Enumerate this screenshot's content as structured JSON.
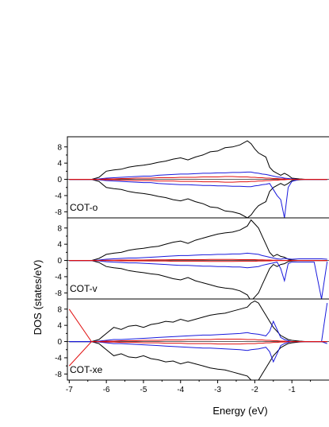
{
  "chart_data": {
    "type": "line",
    "ylabel": "DOS (states/eV)",
    "xlabel": "Energy (eV)",
    "xlim": [
      -7.05,
      -0.0
    ],
    "x_ticks": [
      -7,
      -6,
      -5,
      -4,
      -3,
      -2,
      -1
    ],
    "x_tick_labels": [
      "-7",
      "-6",
      "-5",
      "-4",
      "-3",
      "-2",
      "-1"
    ],
    "ylim": [
      -9.5,
      10.5
    ],
    "y_ticks": [
      -8,
      -4,
      0,
      4,
      8
    ],
    "y_tick_labels": [
      "-8",
      "-4",
      "0",
      "4",
      "8"
    ],
    "y_minor_ticks": [
      -6,
      -2,
      2,
      6
    ],
    "grid": false,
    "colors": {
      "black": "#000000",
      "blue": "#1a1adc",
      "red": "#e01010"
    },
    "panels": [
      {
        "label": "COT-o",
        "x": [
          -7.0,
          -6.4,
          -6.2,
          -6.0,
          -5.8,
          -5.6,
          -5.4,
          -5.2,
          -5.0,
          -4.8,
          -4.6,
          -4.4,
          -4.2,
          -4.0,
          -3.8,
          -3.6,
          -3.4,
          -3.2,
          -3.0,
          -2.8,
          -2.6,
          -2.4,
          -2.2,
          -2.1,
          -2.0,
          -1.9,
          -1.8,
          -1.7,
          -1.6,
          -1.5,
          -1.4,
          -1.3,
          -1.2,
          -1.1,
          -1.0,
          -0.8,
          -0.6,
          -0.4,
          -0.2,
          -0.05
        ],
        "series": [
          {
            "color": "black",
            "values": [
              0,
              0,
              0.5,
              2.0,
              2.3,
              2.5,
              3.0,
              3.3,
              3.5,
              3.8,
              4.2,
              4.5,
              5.0,
              5.3,
              4.8,
              5.5,
              6.0,
              6.8,
              7.0,
              7.8,
              8.0,
              8.5,
              9.5,
              8.8,
              7.5,
              6.5,
              6.0,
              5.5,
              3.0,
              2.0,
              1.5,
              1.0,
              1.5,
              1.0,
              0.3,
              0.1,
              0,
              0,
              0,
              0
            ]
          },
          {
            "color": "black",
            "values": [
              0,
              0,
              -0.5,
              -2.0,
              -2.3,
              -2.5,
              -3.0,
              -3.3,
              -3.5,
              -3.8,
              -4.2,
              -4.5,
              -5.0,
              -5.3,
              -4.8,
              -5.5,
              -6.0,
              -6.8,
              -7.0,
              -7.8,
              -8.0,
              -8.5,
              -9.5,
              -8.8,
              -7.5,
              -6.5,
              -6.0,
              -5.5,
              -3.0,
              -2.0,
              -1.5,
              -1.0,
              -1.5,
              -1.0,
              -0.3,
              -0.1,
              0,
              0,
              0,
              0
            ]
          },
          {
            "color": "blue",
            "values": [
              0,
              0,
              0.1,
              0.3,
              0.4,
              0.5,
              0.6,
              0.7,
              0.8,
              0.8,
              1.0,
              1.1,
              1.2,
              1.3,
              1.3,
              1.4,
              1.5,
              1.5,
              1.6,
              1.6,
              1.7,
              1.7,
              1.8,
              1.8,
              1.6,
              1.5,
              1.3,
              1.2,
              1.0,
              0.8,
              0.6,
              0.5,
              0.3,
              0.2,
              0.1,
              0,
              0,
              0,
              0,
              0
            ]
          },
          {
            "color": "blue",
            "values": [
              0,
              0,
              -0.1,
              -0.3,
              -0.4,
              -0.5,
              -0.6,
              -0.7,
              -0.8,
              -0.8,
              -1.0,
              -1.1,
              -1.2,
              -1.3,
              -1.3,
              -1.4,
              -1.5,
              -1.5,
              -1.6,
              -1.6,
              -1.7,
              -1.7,
              -1.8,
              -1.8,
              -1.6,
              -1.5,
              -1.3,
              -1.2,
              -1.0,
              -2.5,
              -4.0,
              -5.0,
              -9.5,
              -2.0,
              -0.5,
              0,
              0,
              0,
              0,
              0
            ]
          },
          {
            "color": "red",
            "values": [
              0,
              0,
              0,
              0.1,
              0.1,
              0.2,
              0.2,
              0.3,
              0.3,
              0.3,
              0.4,
              0.4,
              0.4,
              0.5,
              0.5,
              0.5,
              0.6,
              0.6,
              0.6,
              0.7,
              0.7,
              0.6,
              0.6,
              0.5,
              0.5,
              0.4,
              0.4,
              0.3,
              0.3,
              0.2,
              0.2,
              0.1,
              0.1,
              0,
              0,
              0,
              0,
              0,
              0,
              0
            ]
          },
          {
            "color": "red",
            "values": [
              0,
              0,
              0,
              -0.1,
              -0.1,
              -0.2,
              -0.2,
              -0.3,
              -0.3,
              -0.3,
              -0.4,
              -0.4,
              -0.4,
              -0.5,
              -0.5,
              -0.5,
              -0.6,
              -0.6,
              -0.6,
              -0.7,
              -0.7,
              -0.6,
              -0.6,
              -0.5,
              -0.5,
              -0.4,
              -0.4,
              -0.3,
              -0.3,
              -0.2,
              -0.2,
              -0.1,
              -0.1,
              0,
              0,
              0,
              0,
              0,
              0,
              0
            ]
          }
        ]
      },
      {
        "label": "COT-v",
        "x": [
          -7.0,
          -6.4,
          -6.2,
          -6.0,
          -5.8,
          -5.6,
          -5.4,
          -5.2,
          -5.0,
          -4.8,
          -4.6,
          -4.4,
          -4.2,
          -4.0,
          -3.8,
          -3.6,
          -3.4,
          -3.2,
          -3.0,
          -2.8,
          -2.6,
          -2.4,
          -2.2,
          -2.1,
          -2.0,
          -1.9,
          -1.8,
          -1.7,
          -1.6,
          -1.5,
          -1.4,
          -1.3,
          -1.2,
          -1.1,
          -1.0,
          -0.8,
          -0.6,
          -0.4,
          -0.2,
          -0.05
        ],
        "series": [
          {
            "color": "black",
            "values": [
              0,
              0,
              0.5,
              1.5,
              1.8,
              2.0,
              2.5,
              2.8,
              3.0,
              3.3,
              3.5,
              4.0,
              4.5,
              4.8,
              4.2,
              5.0,
              5.5,
              6.0,
              6.5,
              6.8,
              7.0,
              7.5,
              8.5,
              10.0,
              9.0,
              8.0,
              6.0,
              4.0,
              2.0,
              1.0,
              1.5,
              1.0,
              0.8,
              0.3,
              0.1,
              0,
              0,
              0,
              0,
              0
            ]
          },
          {
            "color": "black",
            "values": [
              0,
              0,
              -0.5,
              -1.5,
              -1.8,
              -2.0,
              -2.5,
              -2.8,
              -3.0,
              -3.3,
              -3.5,
              -4.0,
              -4.5,
              -4.8,
              -4.2,
              -5.0,
              -5.5,
              -6.0,
              -6.5,
              -6.8,
              -7.0,
              -7.5,
              -8.5,
              -10.0,
              -9.0,
              -8.0,
              -6.0,
              -4.0,
              -2.0,
              -1.0,
              -1.5,
              -1.0,
              -0.8,
              -0.3,
              -0.1,
              0,
              0,
              0,
              0,
              0
            ]
          },
          {
            "color": "blue",
            "values": [
              0,
              0,
              0.1,
              0.3,
              0.4,
              0.5,
              0.6,
              0.6,
              0.7,
              0.8,
              0.9,
              1.0,
              1.1,
              1.2,
              1.2,
              1.3,
              1.4,
              1.4,
              1.5,
              1.5,
              1.6,
              1.6,
              1.8,
              1.7,
              1.6,
              1.5,
              1.2,
              1.0,
              0.8,
              0.6,
              0.4,
              0.3,
              0.5,
              0.4,
              0.3,
              0.4,
              0.4,
              0.4,
              0.4,
              0.3
            ]
          },
          {
            "color": "blue",
            "values": [
              0,
              0,
              -0.1,
              -0.3,
              -0.4,
              -0.5,
              -0.6,
              -0.6,
              -0.7,
              -0.8,
              -0.9,
              -1.0,
              -1.1,
              -1.2,
              -1.2,
              -1.3,
              -1.4,
              -1.4,
              -1.5,
              -1.5,
              -1.6,
              -1.6,
              -1.8,
              -1.7,
              -1.6,
              -1.5,
              -1.2,
              -1.0,
              -0.8,
              -0.6,
              -0.4,
              -2.0,
              -5.0,
              -0.8,
              -0.4,
              -0.4,
              -0.4,
              -0.4,
              -9.5,
              -0.3
            ]
          },
          {
            "color": "red",
            "values": [
              0,
              0,
              0,
              0.05,
              0.05,
              0.1,
              0.1,
              0.1,
              0.1,
              0.15,
              0.15,
              0.15,
              0.2,
              0.2,
              0.2,
              0.2,
              0.2,
              0.25,
              0.25,
              0.25,
              0.25,
              0.2,
              0.2,
              0.2,
              0.2,
              0.15,
              0.15,
              0.1,
              0.1,
              0.05,
              0.05,
              0,
              0,
              0,
              0,
              0,
              0,
              0,
              0,
              0
            ]
          },
          {
            "color": "red",
            "values": [
              0,
              0,
              0,
              -0.05,
              -0.05,
              -0.1,
              -0.1,
              -0.1,
              -0.1,
              -0.15,
              -0.15,
              -0.15,
              -0.2,
              -0.2,
              -0.2,
              -0.2,
              -0.2,
              -0.25,
              -0.25,
              -0.25,
              -0.25,
              -0.2,
              -0.2,
              -0.2,
              -0.2,
              -0.15,
              -0.15,
              -0.1,
              -0.1,
              -0.05,
              -0.05,
              0,
              0,
              0,
              0,
              0,
              0,
              0,
              0,
              0
            ]
          }
        ]
      },
      {
        "label": "COT-xe",
        "x": [
          -7.0,
          -6.4,
          -6.2,
          -6.0,
          -5.8,
          -5.6,
          -5.4,
          -5.2,
          -5.0,
          -4.8,
          -4.6,
          -4.4,
          -4.2,
          -4.0,
          -3.8,
          -3.6,
          -3.4,
          -3.2,
          -3.0,
          -2.8,
          -2.6,
          -2.4,
          -2.2,
          -2.1,
          -2.0,
          -1.9,
          -1.8,
          -1.7,
          -1.6,
          -1.5,
          -1.4,
          -1.3,
          -1.2,
          -1.1,
          -1.0,
          -0.8,
          -0.6,
          -0.4,
          -0.2,
          -0.05
        ],
        "series": [
          {
            "color": "black",
            "values": [
              0,
              0,
              0.5,
              2.0,
              3.5,
              3.0,
              3.8,
              4.0,
              3.5,
              4.2,
              4.5,
              5.0,
              4.8,
              5.5,
              5.0,
              5.5,
              6.0,
              6.5,
              6.8,
              7.0,
              7.5,
              8.0,
              8.5,
              9.5,
              10.0,
              9.5,
              8.0,
              6.5,
              5.0,
              3.5,
              2.5,
              1.5,
              1.0,
              0.5,
              0.3,
              0.1,
              0,
              0,
              0,
              0
            ]
          },
          {
            "color": "black",
            "values": [
              0,
              0,
              -0.5,
              -2.0,
              -3.5,
              -3.0,
              -3.8,
              -4.0,
              -3.5,
              -4.2,
              -4.5,
              -5.0,
              -4.8,
              -5.5,
              -5.0,
              -5.5,
              -6.0,
              -6.5,
              -6.8,
              -7.0,
              -7.5,
              -8.0,
              -8.5,
              -9.5,
              -10.0,
              -9.5,
              -8.0,
              -6.5,
              -5.0,
              -3.5,
              -2.5,
              -1.5,
              -1.0,
              -0.5,
              -0.3,
              -0.1,
              0,
              0,
              0,
              0
            ]
          },
          {
            "color": "blue",
            "values": [
              0,
              0,
              0.1,
              0.3,
              0.5,
              0.5,
              0.6,
              0.7,
              0.8,
              0.9,
              1.0,
              1.1,
              1.2,
              1.3,
              1.4,
              1.5,
              1.6,
              1.6,
              1.7,
              1.8,
              1.9,
              2.0,
              2.2,
              2.0,
              1.9,
              1.8,
              1.6,
              1.4,
              2.5,
              5.0,
              3.0,
              1.0,
              0.5,
              0.2,
              0,
              0,
              0,
              0,
              0,
              9.5
            ]
          },
          {
            "color": "blue",
            "values": [
              0,
              0,
              -0.1,
              -0.3,
              -0.5,
              -0.5,
              -0.6,
              -0.7,
              -0.8,
              -0.9,
              -1.0,
              -1.1,
              -1.2,
              -1.3,
              -1.4,
              -1.5,
              -1.6,
              -1.6,
              -1.7,
              -1.8,
              -1.9,
              -2.0,
              -2.2,
              -2.0,
              -1.9,
              -1.8,
              -1.6,
              -1.4,
              -2.5,
              -5.0,
              -3.0,
              -1.0,
              -0.5,
              -0.2,
              0,
              0,
              0,
              0,
              0,
              -0.5
            ]
          },
          {
            "color": "red",
            "values": [
              8.0,
              0,
              0,
              0.1,
              0.1,
              0.2,
              0.2,
              0.2,
              0.3,
              0.3,
              0.3,
              0.4,
              0.4,
              0.4,
              0.5,
              0.5,
              0.5,
              0.5,
              0.6,
              0.6,
              0.6,
              0.6,
              0.5,
              0.5,
              0.5,
              0.4,
              0.4,
              0.3,
              0.3,
              0.2,
              0.2,
              0.1,
              0.1,
              0,
              0,
              0,
              0,
              0,
              0,
              0
            ]
          },
          {
            "color": "red",
            "values": [
              -6.0,
              0,
              0,
              -0.1,
              -0.1,
              -0.2,
              -0.2,
              -0.2,
              -0.3,
              -0.3,
              -0.3,
              -0.4,
              -0.4,
              -0.4,
              -0.5,
              -0.5,
              -0.5,
              -0.5,
              -0.6,
              -0.6,
              -0.6,
              -0.6,
              -0.5,
              -0.5,
              -0.5,
              -0.4,
              -0.4,
              -0.3,
              -0.3,
              -0.2,
              -0.2,
              -0.1,
              -0.1,
              0,
              0,
              0,
              0,
              0,
              0,
              0
            ]
          }
        ]
      }
    ]
  }
}
